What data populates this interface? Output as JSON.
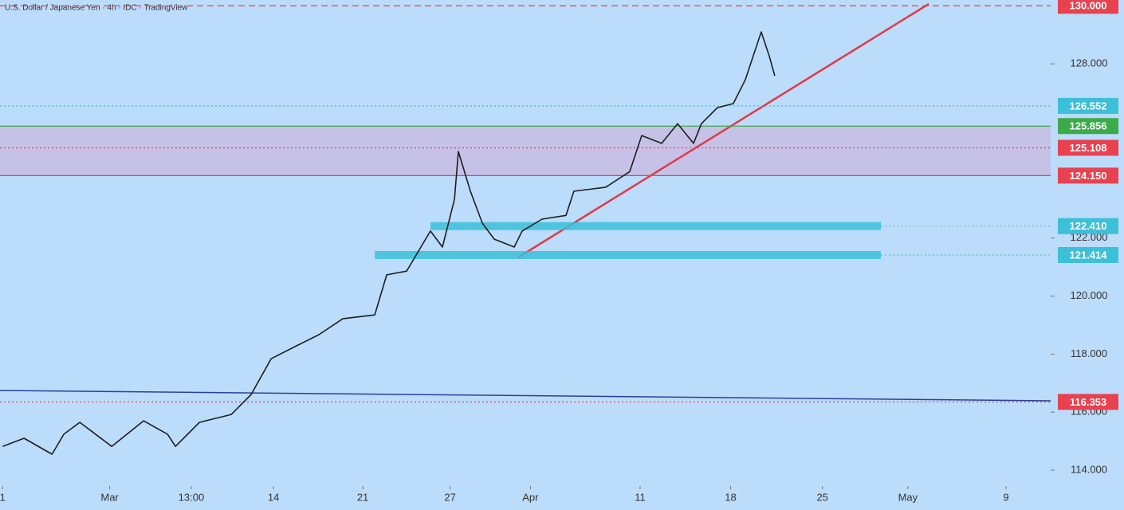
{
  "chart_data": {
    "type": "line",
    "title": "U.S. Dollar / Japanese Yen · 4h · IDC · TradingView",
    "x": [
      0,
      1.69,
      3.88,
      4.81,
      6.06,
      8.56,
      11.06,
      12.94,
      13.56,
      15.44,
      17.94,
      19.5,
      21.06,
      22.94,
      24.81,
      26.69,
      29.19,
      30.13,
      31.69,
      33.56,
      34.5,
      35.44,
      35.75,
      36.69,
      37.63,
      38.56,
      40.13,
      40.75,
      42.31,
      44.19,
      44.81,
      47.31,
      49.19,
      50.13,
      51.69,
      52.94,
      54.19,
      54.81,
      56.06,
      57.31,
      58.25,
      59.5,
      60.13,
      60.56
    ],
    "series": [
      {
        "color": "#1e1e1e",
        "values": [
          114.82,
          115.1,
          114.55,
          115.24,
          115.65,
          114.82,
          115.7,
          115.24,
          114.82,
          115.65,
          115.92,
          116.61,
          117.84,
          118.26,
          118.67,
          119.22,
          119.35,
          120.73,
          120.86,
          122.24,
          121.69,
          123.33,
          124.98,
          123.61,
          122.51,
          121.96,
          121.69,
          122.24,
          122.65,
          122.78,
          123.61,
          123.75,
          124.29,
          125.53,
          125.26,
          125.94,
          125.26,
          125.94,
          126.49,
          126.63,
          127.45,
          129.1,
          128.27,
          127.59
        ]
      }
    ],
    "xlim": [
      -0.2,
      82.2
    ],
    "xticks": [
      {
        "value": 0,
        "label": "1"
      },
      {
        "value": 8.4,
        "label": "Mar"
      },
      {
        "value": 14.8,
        "label": "13:00"
      },
      {
        "value": 21.25,
        "label": "14"
      },
      {
        "value": 28.25,
        "label": "21"
      },
      {
        "value": 35.1,
        "label": "27"
      },
      {
        "value": 41.4,
        "label": "Apr"
      },
      {
        "value": 50,
        "label": "11"
      },
      {
        "value": 57.1,
        "label": "18"
      },
      {
        "value": 64.3,
        "label": "25"
      },
      {
        "value": 71,
        "label": "May"
      },
      {
        "value": 78.7,
        "label": "9"
      }
    ],
    "ylim": [
      113.59,
      130.2
    ],
    "yticks": [
      {
        "value": 128,
        "label": "128.000"
      },
      {
        "value": 122,
        "label": "122.000"
      },
      {
        "value": 120,
        "label": "120.000"
      },
      {
        "value": 118,
        "label": "118.000"
      },
      {
        "value": 116,
        "label": "116.000"
      },
      {
        "value": 114,
        "label": "114.000"
      }
    ],
    "levels": [
      {
        "value": 130,
        "label": "130.000",
        "color": "#e8414f",
        "style": "dashed"
      },
      {
        "value": 126.552,
        "label": "126.552",
        "color": "#3cc0d8",
        "style": "dotted"
      },
      {
        "value": 125.856,
        "label": "125.856",
        "color": "#3daa4a",
        "style": "zone-edge"
      },
      {
        "value": 125.108,
        "label": "125.108",
        "color": "#e8414f",
        "style": "dotted"
      },
      {
        "value": 124.15,
        "label": "124.150",
        "color": "#e8414f",
        "style": "zone-edge"
      },
      {
        "value": 122.41,
        "label": "122.410",
        "color": "#3cc0d8",
        "style": "band",
        "x_range": [
          33.56,
          68.88
        ]
      },
      {
        "value": 121.414,
        "label": "121.414",
        "color": "#3cc0d8",
        "style": "band",
        "x_range": [
          29.19,
          68.88
        ]
      },
      {
        "value": 116.353,
        "label": "116.353",
        "color": "#e8414f",
        "style": "dotted"
      }
    ]
  }
}
